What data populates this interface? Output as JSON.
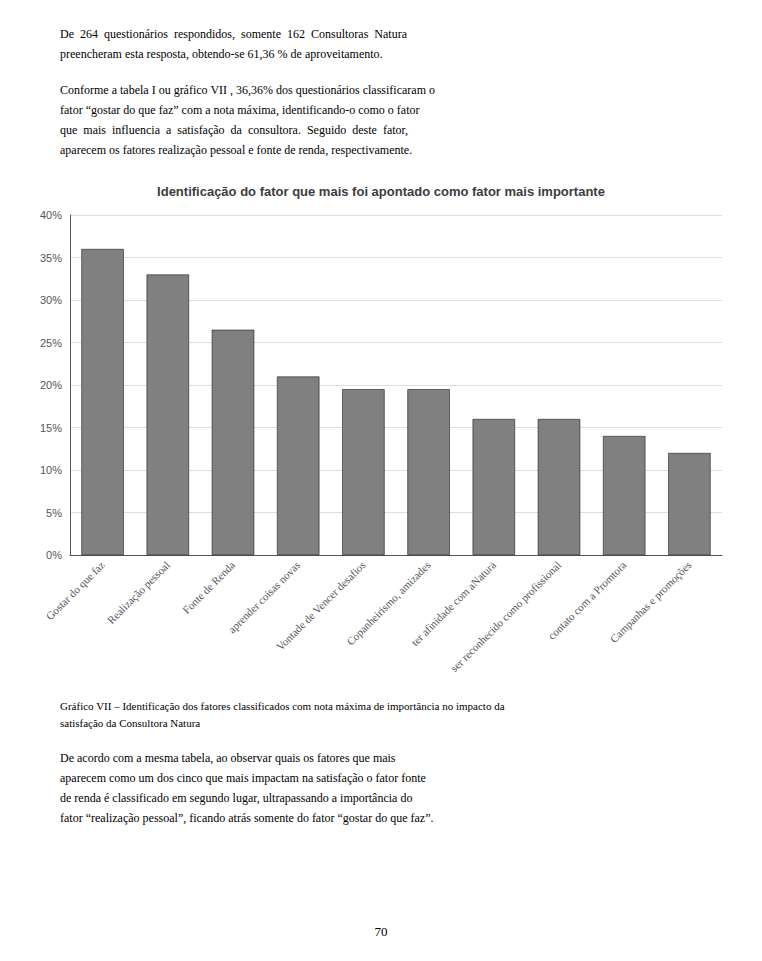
{
  "chart_data": {
    "type": "bar",
    "title": "Identificação do fator que mais foi apontado como fator mais importante",
    "categories": [
      "Gostar do que faz",
      "Realização pessoal",
      "Fonte de Renda",
      "aprender coisas novas",
      "Vontade de Vencer desafios",
      "Copanheirismo, amizades",
      "ter afinidade com aNatura",
      "ser reconhecido como profissional",
      "contato com a Promtora",
      "Campanhas e promoções"
    ],
    "values": [
      0.36,
      0.33,
      0.265,
      0.21,
      0.195,
      0.195,
      0.16,
      0.16,
      0.14,
      0.12
    ],
    "color": "#808080",
    "ylim": [
      0,
      0.4
    ],
    "yticks": [
      {
        "value": 0.0,
        "label": "0%"
      },
      {
        "value": 0.05,
        "label": "5%"
      },
      {
        "value": 0.1,
        "label": "10%"
      },
      {
        "value": 0.15,
        "label": "15%"
      },
      {
        "value": 0.2,
        "label": "20%"
      },
      {
        "value": 0.25,
        "label": "25%"
      },
      {
        "value": 0.3,
        "label": "30%"
      },
      {
        "value": 0.35,
        "label": "35%"
      },
      {
        "value": 0.4,
        "label": "40%"
      }
    ],
    "grid": true,
    "annotations": [
      [
        "De  264  questionários  respondidos,  somente  162  Consultoras  Natura",
        "preencheram esta resposta, obtendo-se 61,36 % de aproveitamento."
      ],
      [
        "Conforme a tabela I ou gráfico VII , 36,36% dos questionários classificaram o",
        "fator “gostar do que faz” com a nota máxima, identificando-o como o fator",
        "que  mais  influencia  a  satisfação  da  consultora.  Seguido  deste  fator,",
        "aparecem os fatores realização pessoal e fonte de renda, respectivamente."
      ],
      [
        "Gráfico VII – Identificação dos fatores classificados com nota máxima de importância no impacto da",
        "satisfação da Consultora Natura"
      ],
      [
        "De acordo com a mesma tabela, ao observar quais os fatores que mais",
        "aparecem como um dos cinco que mais impactam na satisfação o fator fonte",
        "de renda é classificado em segundo lugar, ultrapassando a importância do",
        "fator “realização pessoal”, ficando atrás somente do fator “gostar do que faz”."
      ],
      [
        "70"
      ]
    ]
  }
}
